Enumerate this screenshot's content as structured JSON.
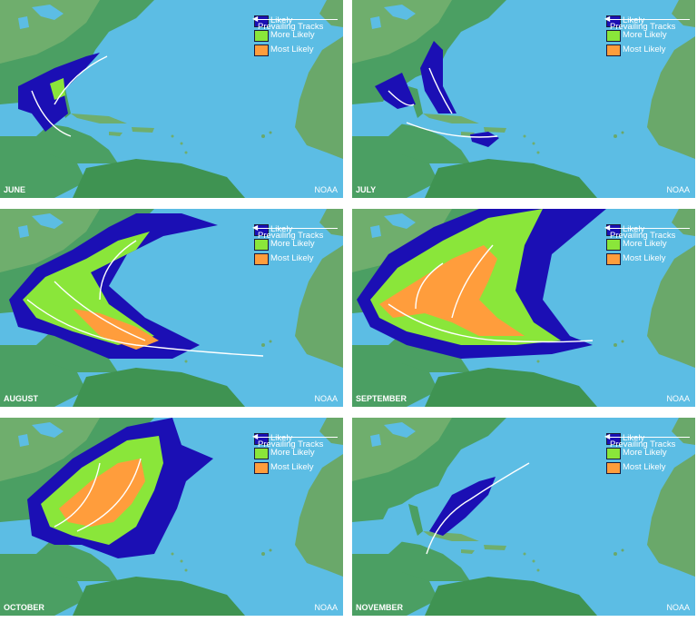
{
  "legend": {
    "likely": "Likely",
    "more_likely": "More Likely",
    "most_likely": "Most Likely",
    "tracks": "Prevailing Tracks"
  },
  "colors": {
    "ocean": "#5cbde4",
    "land": "#4b9f63",
    "likely": "#1b0fb4",
    "more_likely": "#8ae63a",
    "most_likely": "#ff9d3c",
    "track": "#ffffff"
  },
  "credit": "NOAA",
  "panels": [
    {
      "month": "JUNE"
    },
    {
      "month": "JULY"
    },
    {
      "month": "AUGUST"
    },
    {
      "month": "SEPTEMBER"
    },
    {
      "month": "OCTOBER"
    },
    {
      "month": "NOVEMBER"
    }
  ]
}
